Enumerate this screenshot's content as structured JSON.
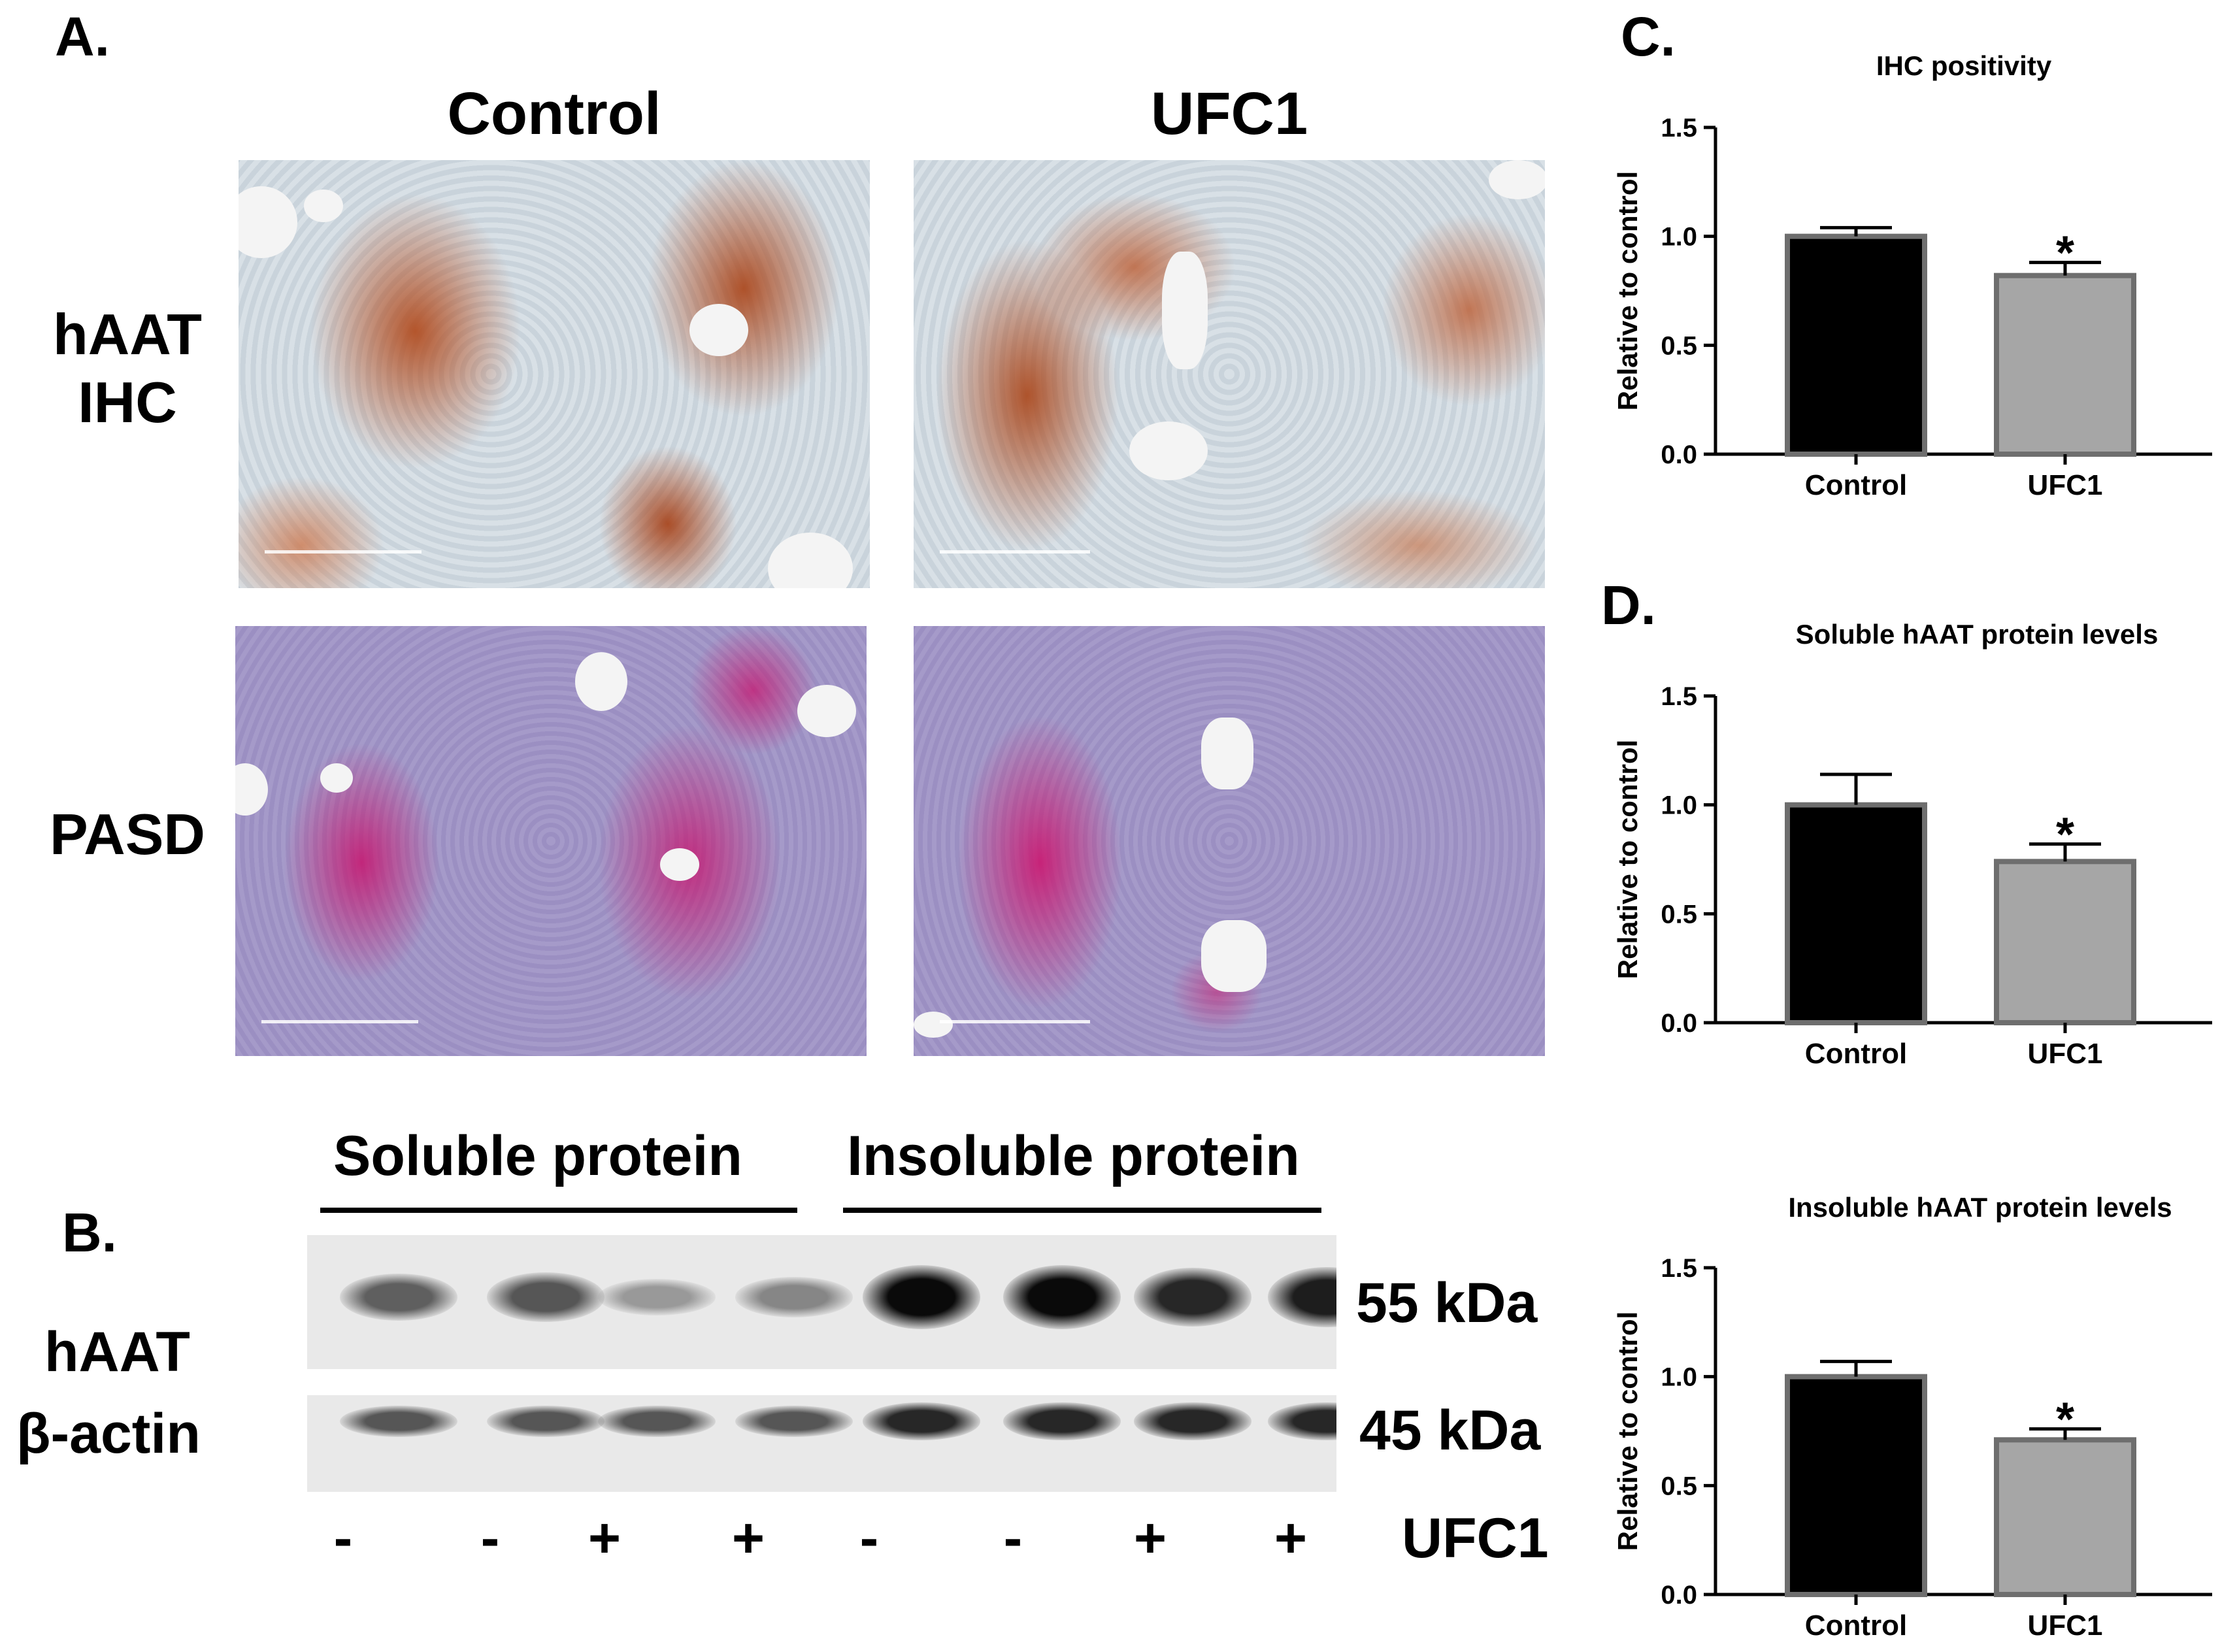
{
  "panel_a": {
    "letter": "A.",
    "col_headers": [
      "Control",
      "UFC1"
    ],
    "row_headers": {
      "ihc_line1": "hAAT",
      "ihc_line2": "IHC",
      "pasd": "PASD"
    }
  },
  "panel_b": {
    "letter": "B.",
    "soluble_label": "Soluble protein",
    "insoluble_label": "Insoluble protein",
    "row_label_haat": "hAAT",
    "row_label_actin": "β-actin",
    "kda_55": "55 kDa",
    "kda_45": "45 kDa",
    "treatment_label": "UFC1",
    "lane_signs": [
      "-",
      "-",
      "+",
      "+",
      "-",
      "-",
      "+",
      "+"
    ],
    "haat_band_intensity": [
      0.55,
      0.6,
      0.25,
      0.35,
      1.0,
      1.0,
      0.85,
      0.9
    ],
    "actin_band_intensity": [
      0.6,
      0.6,
      0.6,
      0.6,
      0.85,
      0.85,
      0.85,
      0.85
    ]
  },
  "panel_c": {
    "letter": "C."
  },
  "panel_d": {
    "letter": "D."
  },
  "chart_data": [
    {
      "type": "bar",
      "title": "IHC positivity",
      "ylabel": "Relative to control",
      "categories": [
        "Control",
        "UFC1"
      ],
      "values": [
        1.0,
        0.82
      ],
      "errors": [
        0.04,
        0.06
      ],
      "significance": [
        "",
        "*"
      ],
      "ylim": [
        0,
        1.5
      ],
      "yticks": [
        "0.0",
        "0.5",
        "1.0",
        "1.5"
      ],
      "colors": [
        "#000000",
        "#a6a6a6"
      ],
      "grid": false
    },
    {
      "type": "bar",
      "title": "Soluble hAAT protein levels",
      "ylabel": "Relative to control",
      "categories": [
        "Control",
        "UFC1"
      ],
      "values": [
        1.0,
        0.74
      ],
      "errors": [
        0.14,
        0.08
      ],
      "significance": [
        "",
        "*"
      ],
      "ylim": [
        0,
        1.5
      ],
      "yticks": [
        "0.0",
        "0.5",
        "1.0",
        "1.5"
      ],
      "colors": [
        "#000000",
        "#a6a6a6"
      ],
      "grid": false
    },
    {
      "type": "bar",
      "title": "Insoluble hAAT protein levels",
      "ylabel": "Relative to control",
      "categories": [
        "Control",
        "UFC1"
      ],
      "values": [
        1.0,
        0.71
      ],
      "errors": [
        0.07,
        0.05
      ],
      "significance": [
        "",
        "*"
      ],
      "ylim": [
        0,
        1.5
      ],
      "yticks": [
        "0.0",
        "0.5",
        "1.0",
        "1.5"
      ],
      "colors": [
        "#000000",
        "#a6a6a6"
      ],
      "grid": false
    }
  ]
}
